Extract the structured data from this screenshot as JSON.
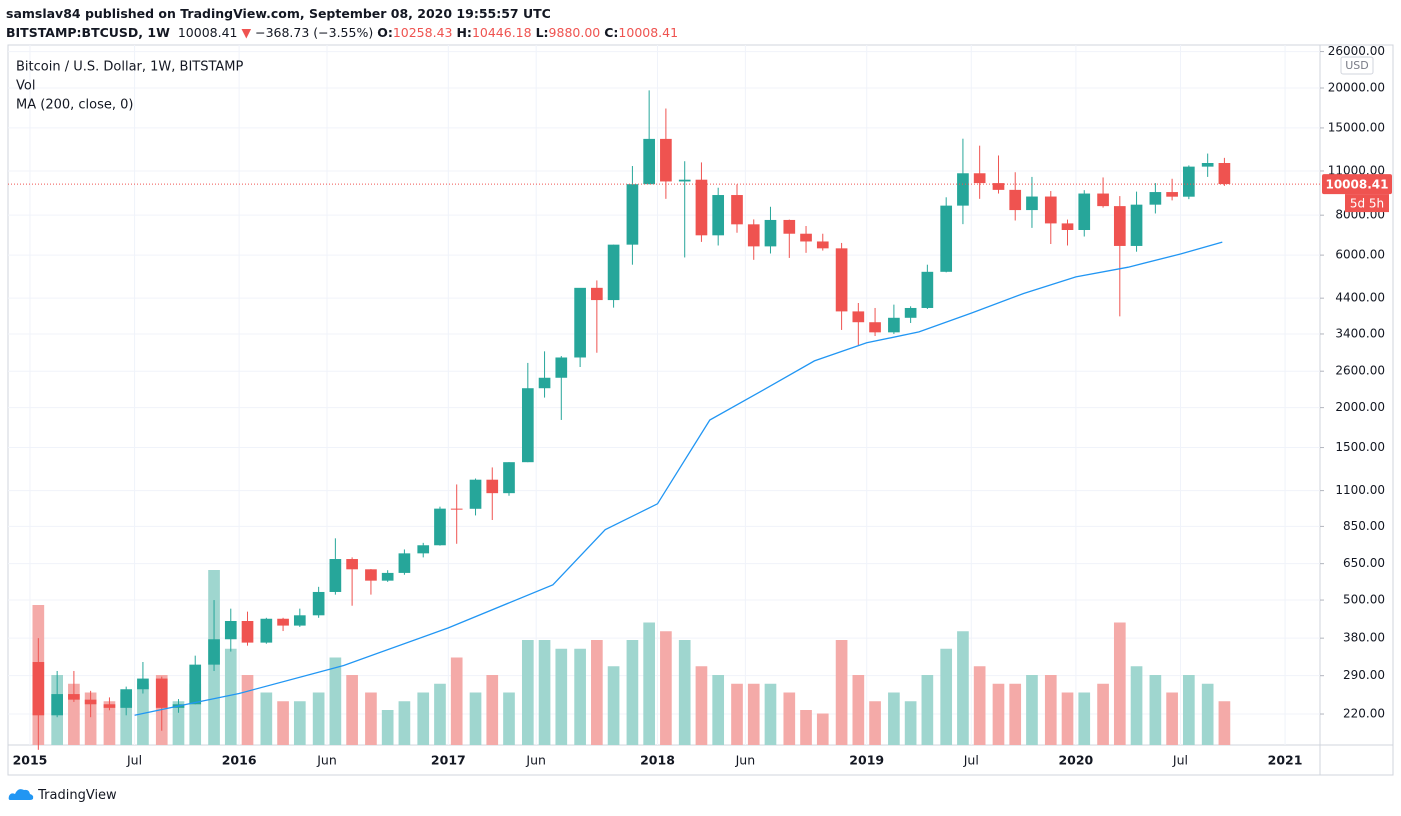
{
  "header": {
    "publisher": "samslav84 published on TradingView.com, September 08, 2020 19:55:57 UTC",
    "symbol": "BITSTAMP:BTCUSD, 1W",
    "price": "10008.41",
    "change": "−368.73 (−3.55%)",
    "o_label": "O:",
    "open": "10258.43",
    "h_label": "H:",
    "high": "10446.18",
    "l_label": "L:",
    "low": "9880.00",
    "c_label": "C:",
    "close": "10008.41"
  },
  "footer": {
    "brand": "TradingView"
  },
  "chart_data": {
    "type": "candlestick",
    "title": "Bitcoin / U.S. Dollar, 1W, BITSTAMP",
    "volume_label": "Vol",
    "ma_label": "MA (200, close, 0)",
    "currency": "USD",
    "last_price": 10008.41,
    "last_price_label": "10008.41",
    "countdown": "5d 5h",
    "log_scale": true,
    "grid": true,
    "up_color": "#26a69a",
    "down_color": "#ef5350",
    "up_volume_color": "#9fd6cf",
    "down_volume_color": "#f4aaa8",
    "ma_color": "#2196f3",
    "ylim": [
      176,
      27260
    ],
    "yticks": [
      {
        "value": 220,
        "label": "220.00"
      },
      {
        "value": 290,
        "label": "290.00"
      },
      {
        "value": 380,
        "label": "380.00"
      },
      {
        "value": 500,
        "label": "500.00"
      },
      {
        "value": 650,
        "label": "650.00"
      },
      {
        "value": 850,
        "label": "850.00"
      },
      {
        "value": 1100,
        "label": "1100.00"
      },
      {
        "value": 1500,
        "label": "1500.00"
      },
      {
        "value": 2000,
        "label": "2000.00"
      },
      {
        "value": 2600,
        "label": "2600.00"
      },
      {
        "value": 3400,
        "label": "3400.00"
      },
      {
        "value": 4400,
        "label": "4400.00"
      },
      {
        "value": 6000,
        "label": "6000.00"
      },
      {
        "value": 8000,
        "label": "8000.00"
      },
      {
        "value": 11000,
        "label": "11000.00"
      },
      {
        "value": 15000,
        "label": "15000.00"
      },
      {
        "value": 20000,
        "label": "20000.00"
      },
      {
        "value": 26000,
        "label": "26000.00"
      }
    ],
    "xlim": [
      2014.895,
      2021.167
    ],
    "xticks": [
      2015,
      {
        "value": 2015.5,
        "label": "Jul"
      },
      2016,
      {
        "value": 2016.42,
        "label": "Jun"
      },
      2017,
      {
        "value": 2017.42,
        "label": "Jun"
      },
      2018,
      {
        "value": 2018.42,
        "label": "Jun"
      },
      2019,
      {
        "value": 2019.5,
        "label": "Jul"
      },
      2020,
      {
        "value": 2020.5,
        "label": "Jul"
      },
      2021
    ],
    "candles": {
      "x": [
        2015.04,
        2015.13,
        2015.21,
        2015.29,
        2015.38,
        2015.46,
        2015.54,
        2015.63,
        2015.71,
        2015.79,
        2015.88,
        2015.96,
        2016.04,
        2016.13,
        2016.21,
        2016.29,
        2016.38,
        2016.46,
        2016.54,
        2016.63,
        2016.71,
        2016.79,
        2016.88,
        2016.96,
        2017.04,
        2017.13,
        2017.21,
        2017.29,
        2017.38,
        2017.46,
        2017.54,
        2017.63,
        2017.71,
        2017.79,
        2017.88,
        2017.96,
        2018.04,
        2018.13,
        2018.21,
        2018.29,
        2018.38,
        2018.46,
        2018.54,
        2018.63,
        2018.71,
        2018.79,
        2018.88,
        2018.96,
        2019.04,
        2019.13,
        2019.21,
        2019.29,
        2019.38,
        2019.46,
        2019.54,
        2019.63,
        2019.71,
        2019.79,
        2019.88,
        2019.96,
        2020.04,
        2020.13,
        2020.21,
        2020.29,
        2020.38,
        2020.46,
        2020.54,
        2020.63,
        2020.71
      ],
      "open": [
        320,
        218,
        254,
        244,
        236,
        230,
        263,
        284,
        230,
        236,
        314,
        377,
        430,
        368,
        437,
        416,
        448,
        530,
        672,
        624,
        575,
        608,
        700,
        742,
        966,
        965,
        1190,
        1080,
        1350,
        2300,
        2480,
        2870,
        4740,
        4340,
        6470,
        10000,
        13860,
        10200,
        10330,
        6920,
        9250,
        7490,
        6390,
        7730,
        7000,
        6620,
        6300,
        4000,
        3700,
        3440,
        3820,
        4100,
        5320,
        8570,
        10820,
        10080,
        9600,
        8300,
        9150,
        7540,
        7190,
        9350,
        8540,
        6410,
        8630,
        9450,
        9140,
        11350,
        11650
      ],
      "high": [
        380,
        300,
        300,
        260,
        248,
        268,
        320,
        288,
        245,
        335,
        500,
        470,
        460,
        440,
        440,
        470,
        550,
        780,
        680,
        625,
        620,
        720,
        755,
        980,
        1150,
        1200,
        1300,
        1350,
        2760,
        3000,
        2900,
        4480,
        5000,
        6470,
        11400,
        19660,
        17250,
        11800,
        11700,
        9750,
        9990,
        7760,
        8500,
        7750,
        7400,
        7000,
        6550,
        4250,
        4100,
        4200,
        4150,
        5600,
        9100,
        13880,
        13200,
        12300,
        10900,
        10540,
        9520,
        7750,
        9580,
        10500,
        9180,
        9480,
        10080,
        10400,
        11450,
        12470,
        12090
      ],
      "low": [
        170,
        215,
        240,
        215,
        226,
        218,
        255,
        195,
        222,
        236,
        300,
        345,
        360,
        365,
        400,
        412,
        440,
        520,
        480,
        520,
        570,
        600,
        680,
        740,
        750,
        920,
        890,
        1060,
        1350,
        2150,
        1830,
        2680,
        2970,
        4110,
        5600,
        10000,
        9000,
        5900,
        6600,
        6430,
        7050,
        5800,
        6070,
        5880,
        6100,
        6200,
        3500,
        3120,
        3350,
        3400,
        3680,
        4070,
        5300,
        7500,
        9000,
        9350,
        7700,
        7300,
        6500,
        6430,
        6860,
        8450,
        3860,
        6150,
        8100,
        8900,
        8980,
        10540,
        9880
      ],
      "close": [
        218,
        254,
        244,
        236,
        230,
        263,
        284,
        230,
        236,
        314,
        377,
        430,
        368,
        437,
        416,
        448,
        530,
        672,
        624,
        575,
        608,
        700,
        742,
        966,
        965,
        1190,
        1080,
        1350,
        2300,
        2480,
        2870,
        4740,
        4340,
        6470,
        10000,
        13860,
        10200,
        10330,
        6920,
        9250,
        7490,
        6390,
        7730,
        7000,
        6620,
        6300,
        4000,
        3700,
        3440,
        3820,
        4100,
        5320,
        8570,
        10820,
        10080,
        9600,
        8300,
        9150,
        7540,
        7190,
        9350,
        8540,
        6410,
        8630,
        9450,
        9140,
        11350,
        11650,
        10008.41
      ],
      "volume": [
        80,
        40,
        35,
        30,
        25,
        30,
        35,
        40,
        25,
        35,
        100,
        55,
        40,
        30,
        25,
        25,
        30,
        50,
        40,
        30,
        20,
        25,
        30,
        35,
        50,
        30,
        40,
        30,
        60,
        60,
        55,
        55,
        60,
        45,
        60,
        70,
        65,
        60,
        45,
        40,
        35,
        35,
        35,
        30,
        20,
        18,
        60,
        40,
        25,
        30,
        25,
        40,
        55,
        65,
        45,
        35,
        35,
        40,
        40,
        30,
        30,
        35,
        70,
        45,
        40,
        30,
        40,
        35,
        25
      ]
    },
    "ma": {
      "x": [
        2015.5,
        2015.75,
        2016.0,
        2016.5,
        2017.0,
        2017.5,
        2017.75,
        2018.0,
        2018.25,
        2018.5,
        2018.75,
        2019.0,
        2019.25,
        2019.5,
        2019.75,
        2020.0,
        2020.25,
        2020.5,
        2020.7
      ],
      "values": [
        218,
        236,
        255,
        312,
        409,
        558,
        830,
        1000,
        1830,
        2260,
        2800,
        3190,
        3450,
        3950,
        4550,
        5130,
        5500,
        6050,
        6590
      ]
    }
  }
}
